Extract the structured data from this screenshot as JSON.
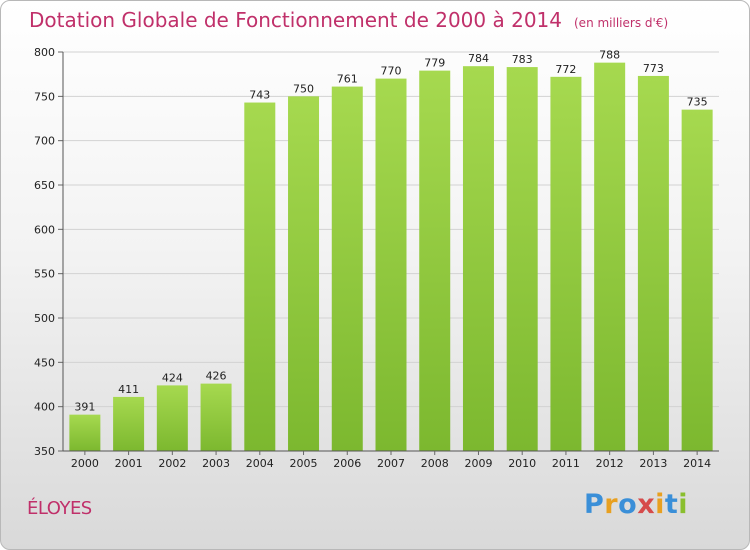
{
  "header": {
    "title": "Dotation Globale de Fonctionnement de 2000 à 2014",
    "subtitle": "(en milliers d'€)"
  },
  "footer": {
    "town": "ÉLOYES",
    "logo": [
      "P",
      "r",
      "o",
      "x",
      "i",
      "t",
      "i"
    ],
    "logo_colors": [
      "#3a8fd8",
      "#e8a020",
      "#3a8fd8",
      "#d64b4b",
      "#e8a020",
      "#3a8fd8",
      "#8abf2e"
    ]
  },
  "chart_data": {
    "type": "bar",
    "title": "Dotation Globale de Fonctionnement de 2000 à 2014",
    "subtitle": "(en milliers d'€)",
    "categories": [
      "2000",
      "2001",
      "2002",
      "2003",
      "2004",
      "2005",
      "2006",
      "2007",
      "2008",
      "2009",
      "2010",
      "2011",
      "2012",
      "2013",
      "2014"
    ],
    "values": [
      391,
      411,
      424,
      426,
      743,
      750,
      761,
      770,
      779,
      784,
      783,
      772,
      788,
      773,
      735
    ],
    "ylim": [
      350,
      800
    ],
    "yticks": [
      350,
      400,
      450,
      500,
      550,
      600,
      650,
      700,
      750,
      800
    ],
    "xlabel": "",
    "ylabel": "",
    "grid": true,
    "bar_color": "#7cb82f",
    "bar_color_light": "#a6d94f"
  }
}
